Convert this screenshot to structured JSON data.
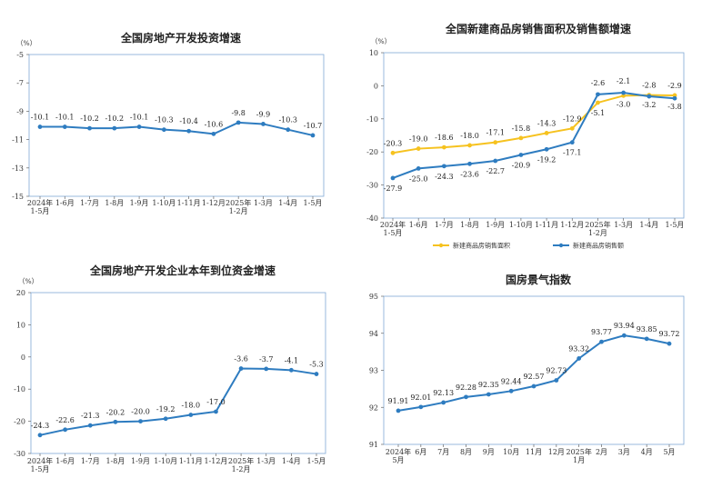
{
  "colors": {
    "blue": "#2e7cc0",
    "yellow": "#f6c21f",
    "frame": "#7fa8d6"
  },
  "chart_data": [
    {
      "type": "line",
      "title": "全国房地产开发投资增速",
      "unit": "（%）",
      "categories": [
        "2024年\n1-5月",
        "1-6月",
        "1-7月",
        "1-8月",
        "1-9月",
        "1-10月",
        "1-11月",
        "1-12月",
        "2025年\n1-2月",
        "1-3月",
        "1-4月",
        "1-5月"
      ],
      "yticks": [
        "-5",
        "-7",
        "-9",
        "-11",
        "-13",
        "-15"
      ],
      "ylim": [
        -15,
        -5
      ],
      "series": [
        {
          "values": [
            -10.1,
            -10.1,
            -10.2,
            -10.2,
            -10.1,
            -10.3,
            -10.4,
            -10.6,
            -9.8,
            -9.9,
            -10.3,
            -10.7
          ],
          "labels": [
            "-10.1",
            "-10.1",
            "-10.2",
            "-10.2",
            "-10.1",
            "-10.3",
            "-10.4",
            "-10.6",
            "-9.8",
            "-9.9",
            "-10.3",
            "-10.7"
          ]
        }
      ]
    },
    {
      "type": "line",
      "title": "全国新建商品房销售面积及销售额增速",
      "unit": "（%）",
      "categories": [
        "2024年\n1-5月",
        "1-6月",
        "1-7月",
        "1-8月",
        "1-9月",
        "1-10月",
        "1-11月",
        "1-12月",
        "2025年\n1-2月",
        "1-3月",
        "1-4月",
        "1-5月"
      ],
      "yticks": [
        "10",
        "0",
        "-10",
        "-20",
        "-30",
        "-40"
      ],
      "ylim": [
        -40,
        10
      ],
      "legend": "bottom",
      "series": [
        {
          "name": "新建商品房销售面积",
          "values": [
            -20.3,
            -19.0,
            -18.6,
            -18.0,
            -17.1,
            -15.8,
            -14.3,
            -12.9,
            -5.1,
            -3.0,
            -2.8,
            -2.9
          ],
          "labels": [
            "-20.3",
            "-19.0",
            "-18.6",
            "-18.0",
            "-17.1",
            "-15.8",
            "-14.3",
            "-12.9",
            "-5.1",
            "-3.0",
            "-2.8",
            "-2.9"
          ]
        },
        {
          "name": "新建商品房销售额",
          "values": [
            -27.9,
            -25.0,
            -24.3,
            -23.6,
            -22.7,
            -20.9,
            -19.2,
            -17.1,
            -2.6,
            -2.1,
            -3.2,
            -3.8
          ],
          "labels": [
            "-27.9",
            "-25.0",
            "-24.3",
            "-23.6",
            "-22.7",
            "-20.9",
            "-19.2",
            "-17.1",
            "-2.6",
            "-2.1",
            "-3.2",
            "-3.8"
          ]
        }
      ]
    },
    {
      "type": "line",
      "title": "全国房地产开发企业本年到位资金增速",
      "unit": "（%）",
      "categories": [
        "2024年\n1-5月",
        "1-6月",
        "1-7月",
        "1-8月",
        "1-9月",
        "1-10月",
        "1-11月",
        "1-12月",
        "2025年\n1-2月",
        "1-3月",
        "1-4月",
        "1-5月"
      ],
      "yticks": [
        "20",
        "10",
        "0",
        "-10",
        "-20",
        "-30"
      ],
      "ylim": [
        -30,
        20
      ],
      "series": [
        {
          "values": [
            -24.3,
            -22.6,
            -21.3,
            -20.2,
            -20.0,
            -19.2,
            -18.0,
            -17.0,
            -3.6,
            -3.7,
            -4.1,
            -5.3
          ],
          "labels": [
            "-24.3",
            "-22.6",
            "-21.3",
            "-20.2",
            "-20.0",
            "-19.2",
            "-18.0",
            "-17.0",
            "-3.6",
            "-3.7",
            "-4.1",
            "-5.3"
          ]
        }
      ]
    },
    {
      "type": "line",
      "title": "国房景气指数",
      "categories": [
        "2024年\n5月",
        "6月",
        "7月",
        "8月",
        "9月",
        "10月",
        "11月",
        "12月",
        "2025年\n1月",
        "2月",
        "3月",
        "4月",
        "5月"
      ],
      "yticks": [
        "95",
        "94",
        "93",
        "92",
        "91"
      ],
      "ylim": [
        91,
        95
      ],
      "series": [
        {
          "values": [
            91.91,
            92.01,
            92.13,
            92.28,
            92.35,
            92.44,
            92.57,
            92.73,
            93.32,
            93.77,
            93.94,
            93.85,
            93.72
          ],
          "labels": [
            "91.91",
            "92.01",
            "92.13",
            "92.28",
            "92.35",
            "92.44",
            "92.57",
            "92.73",
            "93.32",
            "93.77",
            "93.94",
            "93.85",
            "93.72"
          ]
        }
      ]
    }
  ]
}
